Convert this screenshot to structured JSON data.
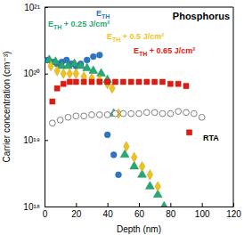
{
  "chart_data": {
    "type": "scatter",
    "title": "Phosphorus",
    "x_label": "Depth (nm)",
    "y_label": "Carrier concentration (cm⁻³)",
    "log": "y",
    "xlim": [
      0,
      120
    ],
    "ylim": [
      1e+18,
      1e+21
    ],
    "xticks": [
      0,
      20,
      40,
      60,
      80,
      100,
      120
    ],
    "yticks": [
      {
        "value": 1e+18,
        "label": "10¹⁸"
      },
      {
        "value": 1e+19,
        "label": "10¹⁹"
      },
      {
        "value": 1e+20,
        "label": "10²⁰"
      },
      {
        "value": 1e+21,
        "label": "10²¹"
      }
    ],
    "series": [
      {
        "name": "ETH",
        "color": "#2e75c6",
        "marker": "circle",
        "x": [
          2,
          5,
          8,
          11,
          14,
          17,
          20,
          23,
          27,
          31,
          35,
          40,
          44,
          47
        ],
        "values": [
          1.6e+20,
          1.5e+20,
          1.4e+20,
          1.5e+20,
          1.6e+20,
          1.4e+20,
          1.3e+20,
          1.4e+20,
          1.6e+20,
          1.8e+20,
          1.9e+20,
          1.2e+19,
          6e+18,
          3e+18
        ]
      },
      {
        "name": "ETH + 0.25 J/cm²",
        "color": "#27a875",
        "marker": "triangle",
        "x": [
          3,
          7,
          11,
          15,
          19,
          23,
          27,
          31,
          36,
          40,
          44,
          51,
          57,
          62,
          67,
          72,
          76
        ],
        "values": [
          1.6e+20,
          1.5e+20,
          1.3e+20,
          1.3e+20,
          1.4e+20,
          1.3e+20,
          1.2e+20,
          1.1e+20,
          1e+20,
          8e+19,
          2.5e+19,
          6e+18,
          4e+18,
          3e+18,
          2e+18,
          1.5e+18,
          1e+18
        ]
      },
      {
        "name": "ETH + 0.5 J/cm²",
        "color": "#f2c21b",
        "marker": "diamond",
        "x": [
          4,
          8,
          12,
          16,
          20,
          25,
          30,
          35,
          40,
          43,
          47,
          52,
          57,
          62,
          67,
          72
        ],
        "values": [
          1.3e+20,
          1.1e+20,
          1e+20,
          1e+20,
          1e+20,
          9e+19,
          8.5e+19,
          8e+19,
          7e+19,
          6e+19,
          2.5e+19,
          8e+18,
          5.5e+18,
          4e+18,
          3e+18,
          2e+18
        ]
      },
      {
        "name": "ETH + 0.65 J/cm²",
        "color": "#e31a10",
        "marker": "square",
        "x": [
          5,
          8,
          12,
          16,
          20,
          25,
          30,
          35,
          40,
          45,
          50,
          55,
          60,
          65,
          70,
          75,
          80,
          85,
          90,
          92
        ],
        "values": [
          3.8e+19,
          6e+19,
          7e+19,
          7.5e+19,
          7.5e+19,
          7.5e+19,
          7.5e+19,
          7.5e+19,
          7.5e+19,
          7.5e+19,
          7.5e+19,
          7.5e+19,
          7.5e+19,
          7.5e+19,
          7.5e+19,
          7.5e+19,
          7e+19,
          7e+19,
          6.5e+19,
          1.3e+19
        ]
      },
      {
        "name": "RTA",
        "color": "#808080",
        "marker": "open_circle",
        "x": [
          5,
          10,
          15,
          20,
          25,
          30,
          35,
          40,
          45,
          50,
          55,
          60,
          65,
          70,
          75,
          80,
          85,
          90,
          95,
          100
        ],
        "values": [
          1.8e+19,
          2e+19,
          2.2e+19,
          2.3e+19,
          2.3e+19,
          2.4e+19,
          2.4e+19,
          2.4e+19,
          2.5e+19,
          2.5e+19,
          2.5e+19,
          2.5e+19,
          2.6e+19,
          2.6e+19,
          2.5e+19,
          2.5e+19,
          2.7e+19,
          2.6e+19,
          2.5e+19,
          2.2e+19
        ]
      }
    ]
  }
}
